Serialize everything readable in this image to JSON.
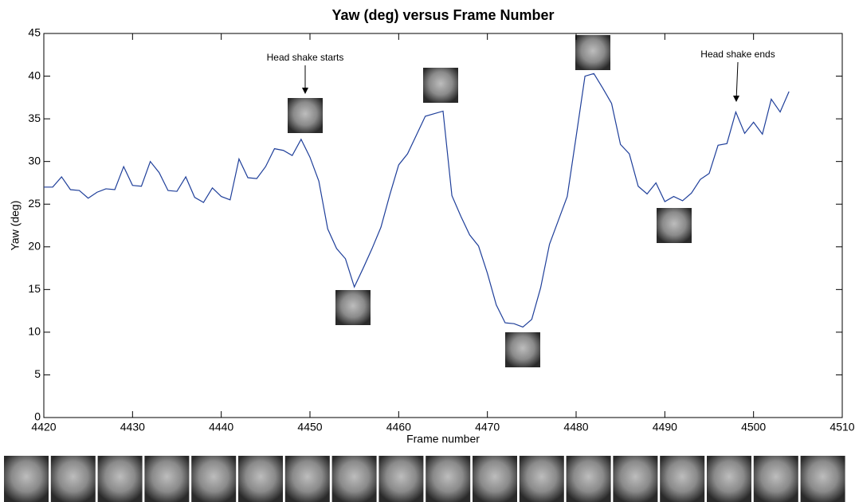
{
  "chart_data": {
    "type": "line",
    "title": "Yaw (deg) versus Frame Number",
    "x_label": "Frame number",
    "y_label": "Yaw (deg)",
    "x": [
      4420,
      4421,
      4422,
      4423,
      4424,
      4425,
      4426,
      4427,
      4428,
      4429,
      4430,
      4431,
      4432,
      4433,
      4434,
      4435,
      4436,
      4437,
      4438,
      4439,
      4440,
      4441,
      4442,
      4443,
      4444,
      4445,
      4446,
      4447,
      4448,
      4449,
      4450,
      4451,
      4452,
      4453,
      4454,
      4455,
      4456,
      4457,
      4458,
      4459,
      4460,
      4461,
      4462,
      4463,
      4464,
      4465,
      4466,
      4467,
      4468,
      4469,
      4470,
      4471,
      4472,
      4473,
      4474,
      4475,
      4476,
      4477,
      4478,
      4479,
      4480,
      4481,
      4482,
      4483,
      4484,
      4485,
      4486,
      4487,
      4488,
      4489,
      4490,
      4491,
      4492,
      4493,
      4494,
      4495,
      4496,
      4497,
      4498,
      4499,
      4500,
      4501,
      4502,
      4503,
      4504
    ],
    "values": [
      27.0,
      27.0,
      28.2,
      26.7,
      26.6,
      25.7,
      26.4,
      26.8,
      26.7,
      29.4,
      27.2,
      27.1,
      30.0,
      28.7,
      26.6,
      26.5,
      28.2,
      25.8,
      25.2,
      26.9,
      25.9,
      25.5,
      30.3,
      28.1,
      28.0,
      29.4,
      31.5,
      31.3,
      30.7,
      32.6,
      30.5,
      27.7,
      22.1,
      19.8,
      18.6,
      15.3,
      17.5,
      19.8,
      22.3,
      26.1,
      29.6,
      30.9,
      33.1,
      35.3,
      35.6,
      35.9,
      26.0,
      23.6,
      21.4,
      20.1,
      16.9,
      13.2,
      11.1,
      11.0,
      10.6,
      11.5,
      15.2,
      20.3,
      23.1,
      25.9,
      32.9,
      40.0,
      40.3,
      38.6,
      36.8,
      32.0,
      30.9,
      27.1,
      26.2,
      27.5,
      25.3,
      25.9,
      25.4,
      26.3,
      27.9,
      28.6,
      31.9,
      32.1,
      35.8,
      33.3,
      34.6,
      33.2,
      37.3,
      35.8,
      38.2
    ],
    "color": "#1f3f9a",
    "xlim": [
      4420,
      4510
    ],
    "xticks": [
      4420,
      4430,
      4440,
      4450,
      4460,
      4470,
      4480,
      4490,
      4500,
      4510
    ],
    "ylim": [
      0,
      45
    ],
    "yticks": [
      0,
      5,
      10,
      15,
      20,
      25,
      30,
      35,
      40,
      45
    ],
    "grid": false,
    "annotations": [
      "Head shake starts",
      "Head shake ends"
    ]
  }
}
